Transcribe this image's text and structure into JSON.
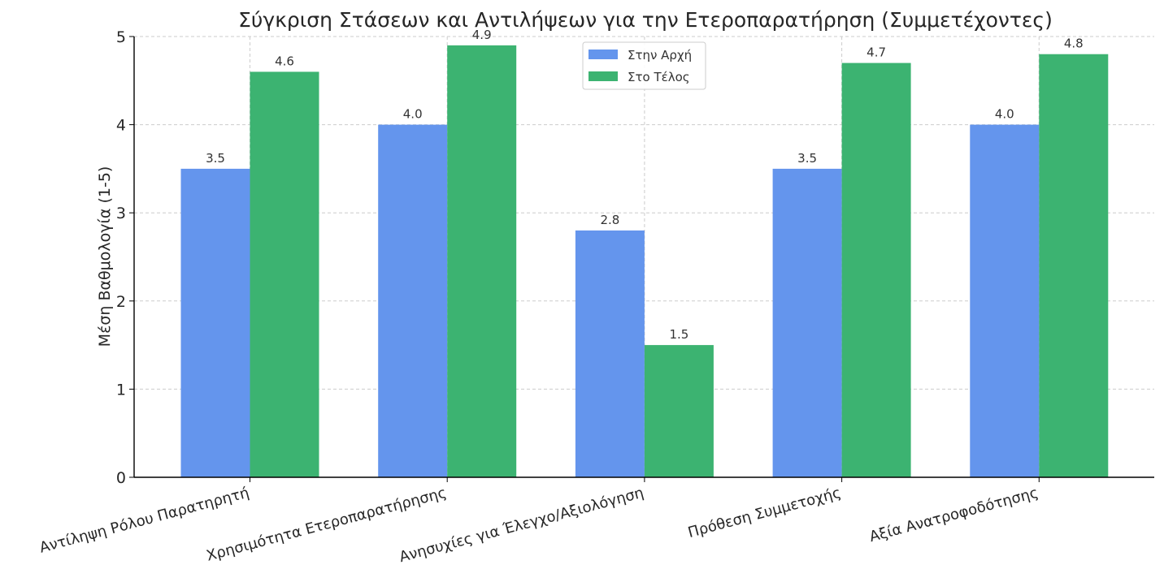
{
  "chart_data": {
    "type": "bar",
    "title": "Σύγκριση Στάσεων και Αντιλήψεων για την Ετεροπαρατήρηση (Συμμετέχοντες)",
    "xlabel": "",
    "ylabel": "Μέση Βαθμολογία (1-5)",
    "ylim": [
      0,
      5
    ],
    "yticks": [
      "0",
      "1",
      "2",
      "3",
      "4",
      "5"
    ],
    "categories": [
      "Αντίληψη Ρόλου Παρατηρητή",
      "Χρησιμότητα Ετεροπαρατήρησης",
      "Ανησυχίες για Έλεγχο/Αξιολόγηση",
      "Πρόθεση Συμμετοχής",
      "Αξία Ανατροφοδότησης"
    ],
    "series": [
      {
        "name": "Στην Αρχή",
        "color": "#6495ED",
        "values": [
          3.5,
          4.0,
          2.8,
          3.5,
          4.0
        ],
        "labels": [
          "3.5",
          "4.0",
          "2.8",
          "3.5",
          "4.0"
        ]
      },
      {
        "name": "Στο Τέλος",
        "color": "#3CB371",
        "values": [
          4.6,
          4.9,
          1.5,
          4.7,
          4.8
        ],
        "labels": [
          "4.6",
          "4.9",
          "1.5",
          "4.7",
          "4.8"
        ]
      }
    ],
    "grid": true,
    "legend_position": "top-center"
  }
}
